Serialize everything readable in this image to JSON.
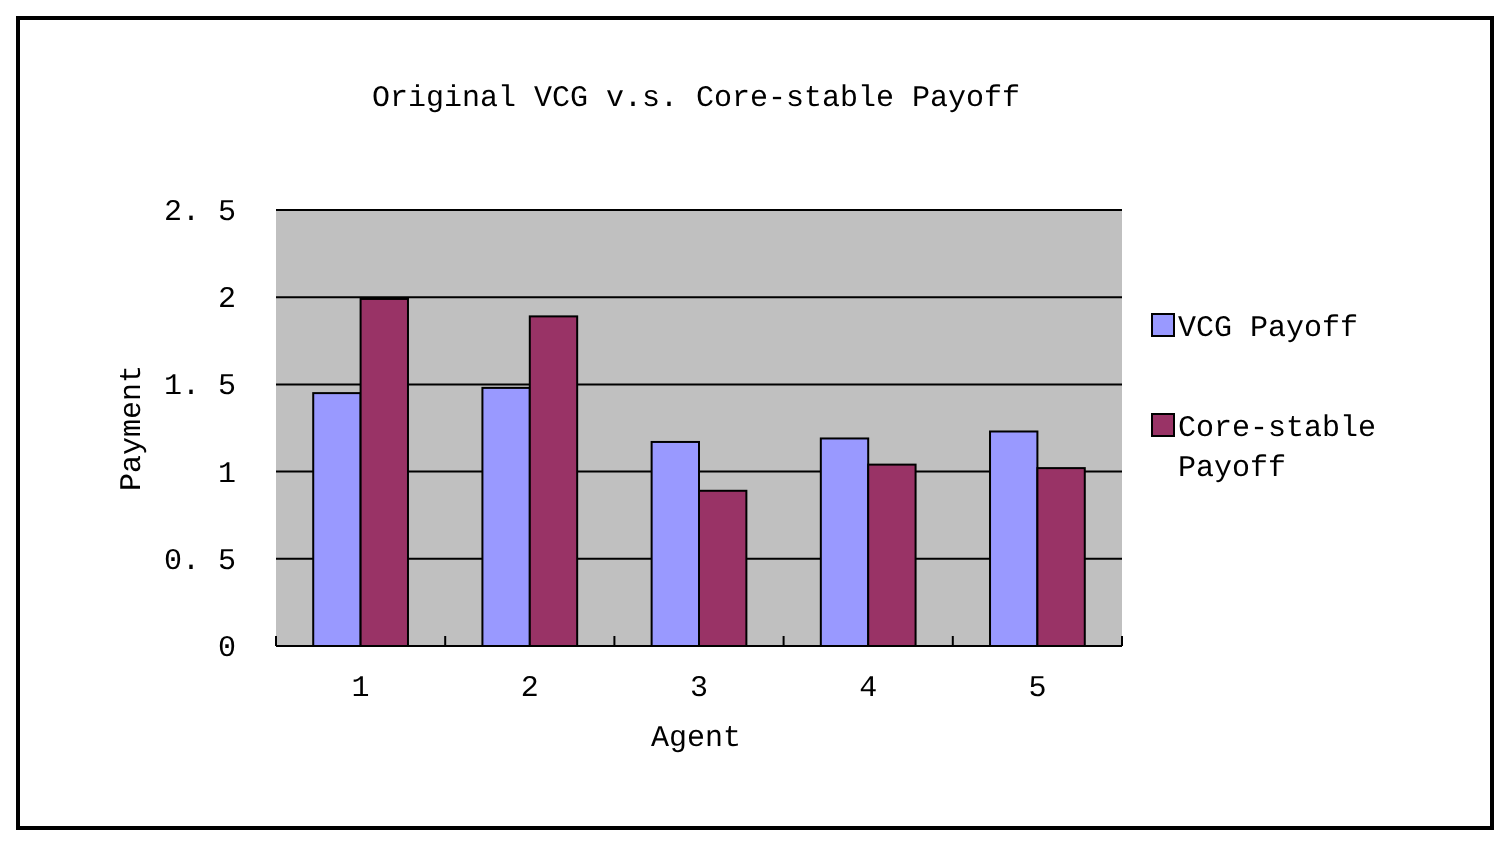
{
  "chart_data": {
    "type": "bar",
    "title": "Original VCG v.s. Core-stable Payoff",
    "xlabel": "Agent",
    "ylabel": "Payment",
    "categories": [
      "1",
      "2",
      "3",
      "4",
      "5"
    ],
    "series": [
      {
        "name": "VCG Payoff",
        "color": "#9999ff",
        "values": [
          1.45,
          1.48,
          1.17,
          1.19,
          1.23
        ]
      },
      {
        "name": "Core-stable Payoff",
        "color": "#993366",
        "values": [
          1.99,
          1.89,
          0.89,
          1.04,
          1.02
        ]
      }
    ],
    "ylim": [
      0,
      2.5
    ],
    "yticks": [
      0,
      0.5,
      1,
      1.5,
      2,
      2.5
    ],
    "grid": "y",
    "legend": "right"
  }
}
